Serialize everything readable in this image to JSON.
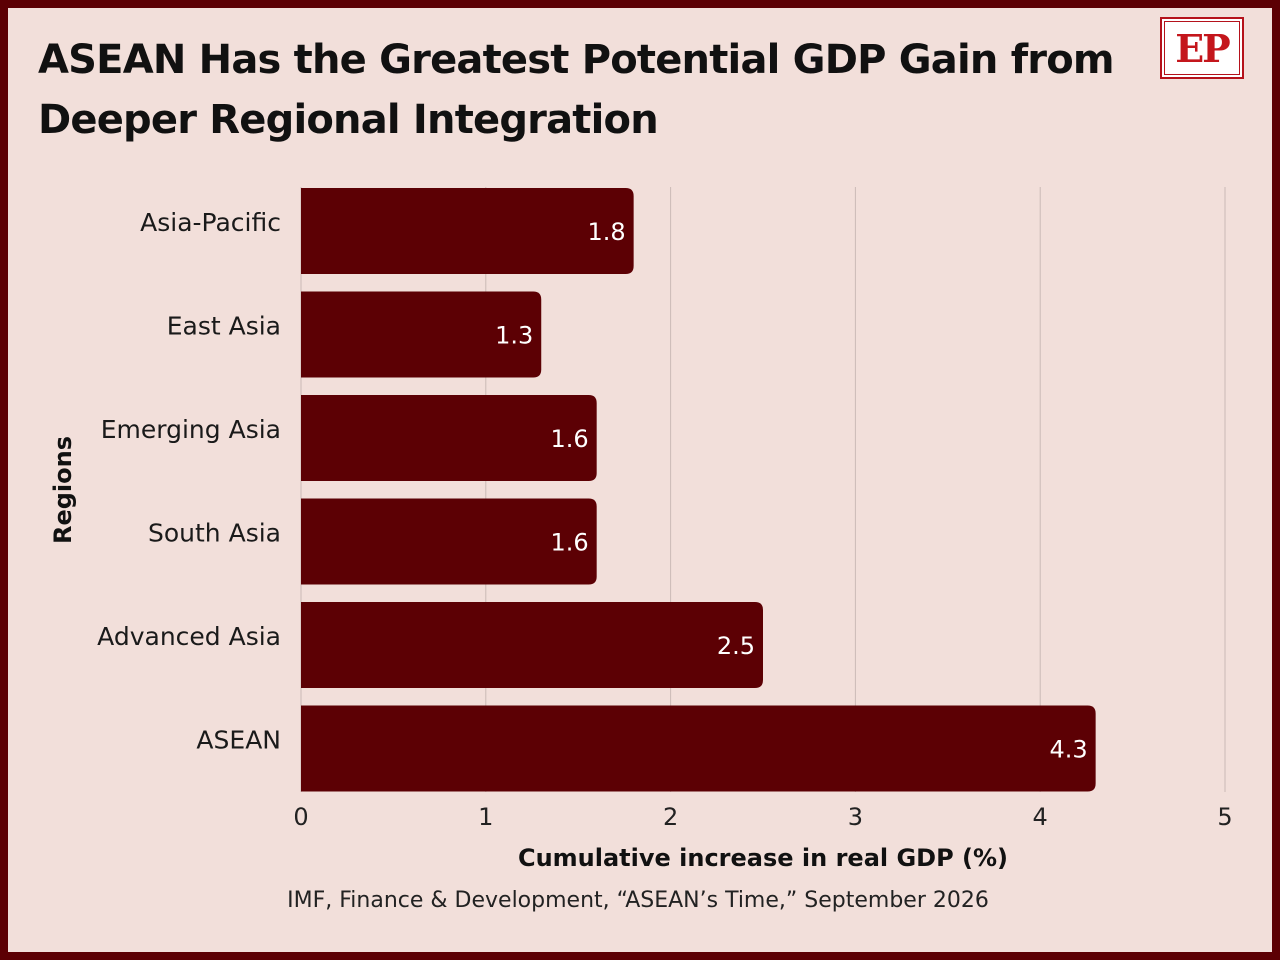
{
  "title": "ASEAN Has the Greatest Potential GDP Gain from Deeper Regional Integration",
  "logo_text": "EP",
  "source": "IMF, Finance & Development, “ASEAN’s Time,” September 2026",
  "colors": {
    "bar": "#5c0004",
    "background": "#f2dfda",
    "frame": "#5c0004",
    "grid": "#cbbab6",
    "logo_red": "#c4161c"
  },
  "chart_data": {
    "type": "bar",
    "orientation": "horizontal",
    "categories": [
      "Asia-Pacific",
      "East Asia",
      "Emerging Asia",
      "South Asia",
      "Advanced Asia",
      "ASEAN"
    ],
    "values": [
      1.8,
      1.3,
      1.6,
      1.6,
      2.5,
      4.3
    ],
    "data_labels": [
      "1.8",
      "1.3",
      "1.6",
      "1.6",
      "2.5",
      "4.3"
    ],
    "xlabel": "Cumulative increase in real GDP (%)",
    "ylabel": "Regions",
    "xlim": [
      0,
      5
    ],
    "xticks": [
      "0",
      "1",
      "2",
      "3",
      "4",
      "5"
    ],
    "grid": "vertical",
    "legend": "none"
  }
}
